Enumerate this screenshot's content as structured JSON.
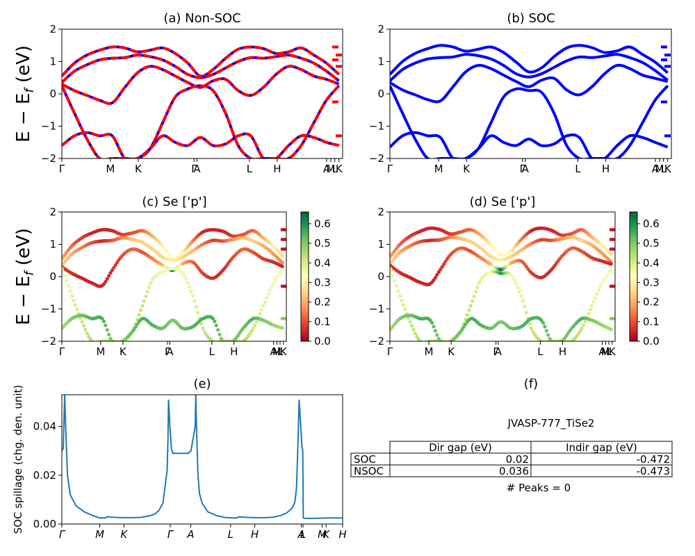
{
  "chart_data": [
    {
      "id": "a",
      "type": "line",
      "title": "(a) Non-SOC",
      "ylabel": "E − E_f (eV)",
      "ylim": [
        -2,
        2
      ],
      "yticks": [
        "2",
        "1",
        "0",
        "−1",
        "−2"
      ],
      "kpoint_labels": [
        "Γ",
        "M",
        "K",
        "Γ",
        "A",
        "L",
        "H",
        "A",
        "M",
        "L",
        "K"
      ],
      "series": [
        {
          "values": [
            0.55,
            0.95,
            1.2,
            1.35,
            1.45,
            1.42,
            1.3,
            1.35,
            1.42,
            1.25,
            0.95,
            0.55,
            0.75,
            1.1,
            1.38,
            1.45,
            1.4,
            1.25,
            1.3,
            1.42,
            1.2,
            0.95,
            0.6
          ]
        },
        {
          "values": [
            0.35,
            0.7,
            0.9,
            1.05,
            1.1,
            1.12,
            1.2,
            1.15,
            1.05,
            0.85,
            0.6,
            0.5,
            0.6,
            0.8,
            1.0,
            1.12,
            1.1,
            1.15,
            1.2,
            1.1,
            0.95,
            0.7,
            0.4
          ]
        },
        {
          "values": [
            0.3,
            0.1,
            -0.05,
            -0.2,
            -0.28,
            0.2,
            0.65,
            0.85,
            0.75,
            0.55,
            0.35,
            0.2,
            0.4,
            0.45,
            0.1,
            -0.05,
            0.2,
            0.6,
            0.85,
            0.75,
            0.55,
            0.45,
            0.3
          ]
        },
        {
          "values": [
            0.25,
            -0.6,
            -1.4,
            -2.0,
            -2.0,
            -2.0,
            -2.0,
            -1.7,
            -0.9,
            -0.1,
            0.15,
            0.25,
            0.1,
            -0.6,
            -1.6,
            -2.0,
            -2.0,
            -2.0,
            -2.0,
            -1.6,
            -0.9,
            -0.2,
            0.25
          ]
        },
        {
          "values": [
            -1.6,
            -1.3,
            -1.2,
            -1.3,
            -1.3,
            -2.0,
            -2.0,
            -1.7,
            -1.3,
            -1.5,
            -1.6,
            -1.35,
            -1.6,
            -1.55,
            -1.3,
            -1.3,
            -2.0,
            -2.0,
            -1.6,
            -1.3,
            -1.35,
            -1.5,
            -1.6
          ]
        }
      ]
    },
    {
      "id": "b",
      "type": "line",
      "title": "(b) SOC",
      "ylim": [
        -2,
        2
      ],
      "yticks": [
        "2",
        "1",
        "0",
        "−1",
        "−2"
      ],
      "kpoint_labels": [
        "Γ",
        "M",
        "K",
        "Γ",
        "A",
        "L",
        "H",
        "A",
        "M",
        "L",
        "K"
      ],
      "series": [
        {
          "values": [
            0.6,
            1.0,
            1.25,
            1.4,
            1.5,
            1.45,
            1.32,
            1.38,
            1.45,
            1.28,
            0.98,
            0.68,
            0.8,
            1.15,
            1.42,
            1.5,
            1.43,
            1.28,
            1.33,
            1.45,
            1.22,
            0.98,
            0.65
          ]
        },
        {
          "values": [
            0.4,
            0.75,
            0.95,
            1.08,
            1.12,
            1.14,
            1.22,
            1.18,
            1.08,
            0.88,
            0.62,
            0.52,
            0.62,
            0.82,
            1.02,
            1.14,
            1.12,
            1.17,
            1.22,
            1.12,
            0.97,
            0.72,
            0.42
          ]
        },
        {
          "values": [
            0.35,
            0.12,
            -0.03,
            -0.18,
            -0.22,
            0.22,
            0.68,
            0.88,
            0.78,
            0.58,
            0.38,
            0.22,
            0.42,
            0.48,
            0.12,
            -0.03,
            0.22,
            0.62,
            0.88,
            0.78,
            0.58,
            0.48,
            0.38
          ]
        },
        {
          "values": [
            0.25,
            -0.6,
            -1.4,
            -2.0,
            -2.0,
            -2.0,
            -2.0,
            -1.7,
            -0.9,
            -0.1,
            0.15,
            0.1,
            0.05,
            -0.6,
            -1.6,
            -2.0,
            -2.0,
            -2.0,
            -2.0,
            -1.6,
            -0.9,
            -0.2,
            0.25
          ]
        },
        {
          "values": [
            -1.65,
            -1.3,
            -1.2,
            -1.3,
            -1.35,
            -2.0,
            -2.0,
            -1.7,
            -1.3,
            -1.5,
            -1.6,
            -1.4,
            -1.6,
            -1.55,
            -1.3,
            -1.35,
            -2.0,
            -2.0,
            -1.6,
            -1.3,
            -1.35,
            -1.5,
            -1.65
          ]
        }
      ]
    },
    {
      "id": "c",
      "type": "scatter",
      "title": "(c)  Se ['p']",
      "ylabel": "E − E_f (eV)",
      "ylim": [
        -2,
        2
      ],
      "yticks": [
        "2",
        "1",
        "0",
        "−1",
        "−2"
      ],
      "kpoint_labels": [
        "Γ",
        "M",
        "K",
        "Γ",
        "A",
        "L",
        "H",
        "A",
        "M",
        "L",
        "K"
      ],
      "colorbar": {
        "min": 0.0,
        "max": 0.66,
        "ticks": [
          "0.0",
          "0.1",
          "0.2",
          "0.3",
          "0.4",
          "0.5",
          "0.6"
        ],
        "colors": [
          "#a50026",
          "#d73027",
          "#f46d43",
          "#fdae61",
          "#fee08b",
          "#ffffbf",
          "#d9ef8b",
          "#a6d96a",
          "#66bd63",
          "#1a9850",
          "#006837"
        ]
      },
      "series": [
        {
          "values": [
            0.55,
            0.95,
            1.2,
            1.35,
            1.45,
            1.42,
            1.3,
            1.35,
            1.42,
            1.25,
            0.95,
            0.55,
            0.75,
            1.1,
            1.38,
            1.45,
            1.4,
            1.25,
            1.3,
            1.42,
            1.2,
            0.95,
            0.6
          ],
          "weights": [
            0.2,
            0.12,
            0.08,
            0.05,
            0.05,
            0.05,
            0.08,
            0.1,
            0.12,
            0.2,
            0.3,
            0.35,
            0.3,
            0.15,
            0.05,
            0.05,
            0.05,
            0.08,
            0.1,
            0.12,
            0.2,
            0.3,
            0.25
          ]
        },
        {
          "values": [
            0.35,
            0.7,
            0.9,
            1.05,
            1.1,
            1.12,
            1.2,
            1.15,
            1.05,
            0.85,
            0.6,
            0.5,
            0.6,
            0.8,
            1.0,
            1.12,
            1.1,
            1.15,
            1.2,
            1.1,
            0.95,
            0.7,
            0.4
          ],
          "weights": [
            0.25,
            0.2,
            0.15,
            0.1,
            0.05,
            0.1,
            0.15,
            0.22,
            0.25,
            0.25,
            0.25,
            0.3,
            0.25,
            0.22,
            0.15,
            0.08,
            0.1,
            0.18,
            0.22,
            0.25,
            0.2,
            0.18,
            0.15
          ]
        },
        {
          "values": [
            0.3,
            0.1,
            -0.05,
            -0.2,
            -0.28,
            0.2,
            0.65,
            0.85,
            0.75,
            0.55,
            0.35,
            0.2,
            0.4,
            0.45,
            0.1,
            -0.05,
            0.2,
            0.6,
            0.85,
            0.75,
            0.55,
            0.45,
            0.3
          ],
          "weights": [
            0.08,
            0.06,
            0.05,
            0.05,
            0.05,
            0.06,
            0.1,
            0.12,
            0.1,
            0.15,
            0.2,
            0.66,
            0.2,
            0.12,
            0.08,
            0.06,
            0.06,
            0.1,
            0.12,
            0.1,
            0.08,
            0.06,
            0.05
          ]
        },
        {
          "values": [
            0.25,
            -0.6,
            -1.4,
            -2.0,
            -2.0,
            -2.0,
            -2.0,
            -1.7,
            -0.9,
            -0.1,
            0.15,
            0.25,
            0.1,
            -0.6,
            -1.6,
            -2.0,
            -2.0,
            -2.0,
            -2.0,
            -1.6,
            -0.9,
            -0.2,
            0.25
          ],
          "weights": [
            0.35,
            0.38,
            0.42,
            0.45,
            0.45,
            0.45,
            0.45,
            0.45,
            0.42,
            0.38,
            0.35,
            0.35,
            0.35,
            0.38,
            0.42,
            0.45,
            0.45,
            0.45,
            0.45,
            0.42,
            0.38,
            0.35,
            0.35
          ]
        },
        {
          "values": [
            -1.6,
            -1.3,
            -1.2,
            -1.3,
            -1.3,
            -2.0,
            -2.0,
            -1.7,
            -1.3,
            -1.5,
            -1.6,
            -1.35,
            -1.6,
            -1.55,
            -1.3,
            -1.3,
            -2.0,
            -2.0,
            -1.6,
            -1.3,
            -1.35,
            -1.5,
            -1.6
          ],
          "weights": [
            0.45,
            0.5,
            0.52,
            0.55,
            0.55,
            0.5,
            0.5,
            0.52,
            0.55,
            0.55,
            0.52,
            0.5,
            0.52,
            0.55,
            0.55,
            0.55,
            0.5,
            0.5,
            0.52,
            0.55,
            0.5,
            0.48,
            0.45
          ]
        }
      ]
    },
    {
      "id": "d",
      "type": "scatter",
      "title": "(d) Se ['p']",
      "ylim": [
        -2,
        2
      ],
      "yticks": [
        "2",
        "1",
        "0",
        "−1",
        "−2"
      ],
      "kpoint_labels": [
        "Γ",
        "M",
        "K",
        "Γ",
        "A",
        "L",
        "H",
        "A",
        "M",
        "L",
        "K"
      ],
      "colorbar": {
        "min": 0.0,
        "max": 0.66,
        "ticks": [
          "0.0",
          "0.1",
          "0.2",
          "0.3",
          "0.4",
          "0.5",
          "0.6"
        ],
        "colors": [
          "#a50026",
          "#d73027",
          "#f46d43",
          "#fdae61",
          "#fee08b",
          "#ffffbf",
          "#d9ef8b",
          "#a6d96a",
          "#66bd63",
          "#1a9850",
          "#006837"
        ]
      },
      "series": [
        {
          "values": [
            0.6,
            1.0,
            1.25,
            1.4,
            1.5,
            1.45,
            1.32,
            1.38,
            1.45,
            1.28,
            0.98,
            0.68,
            0.8,
            1.15,
            1.42,
            1.5,
            1.43,
            1.28,
            1.33,
            1.45,
            1.22,
            0.98,
            0.65
          ],
          "weights": [
            0.2,
            0.12,
            0.08,
            0.05,
            0.05,
            0.05,
            0.08,
            0.1,
            0.12,
            0.2,
            0.3,
            0.35,
            0.3,
            0.15,
            0.05,
            0.05,
            0.05,
            0.08,
            0.1,
            0.12,
            0.2,
            0.3,
            0.25
          ]
        },
        {
          "values": [
            0.4,
            0.75,
            0.95,
            1.08,
            1.12,
            1.14,
            1.22,
            1.18,
            1.08,
            0.88,
            0.62,
            0.52,
            0.62,
            0.82,
            1.02,
            1.14,
            1.12,
            1.17,
            1.22,
            1.12,
            0.97,
            0.72,
            0.42
          ],
          "weights": [
            0.25,
            0.2,
            0.15,
            0.1,
            0.05,
            0.1,
            0.15,
            0.22,
            0.25,
            0.25,
            0.25,
            0.3,
            0.25,
            0.22,
            0.15,
            0.08,
            0.1,
            0.18,
            0.22,
            0.25,
            0.2,
            0.18,
            0.15
          ]
        },
        {
          "values": [
            0.35,
            0.12,
            -0.03,
            -0.18,
            -0.22,
            0.22,
            0.68,
            0.88,
            0.78,
            0.58,
            0.38,
            0.22,
            0.42,
            0.48,
            0.12,
            -0.03,
            0.22,
            0.62,
            0.88,
            0.78,
            0.58,
            0.48,
            0.38
          ],
          "weights": [
            0.08,
            0.06,
            0.05,
            0.05,
            0.05,
            0.06,
            0.1,
            0.12,
            0.1,
            0.15,
            0.2,
            0.66,
            0.2,
            0.12,
            0.08,
            0.06,
            0.06,
            0.1,
            0.12,
            0.1,
            0.08,
            0.06,
            0.05
          ]
        },
        {
          "values": [
            0.25,
            -0.6,
            -1.4,
            -2.0,
            -2.0,
            -2.0,
            -2.0,
            -1.7,
            -0.9,
            -0.1,
            0.15,
            0.1,
            0.05,
            -0.6,
            -1.6,
            -2.0,
            -2.0,
            -2.0,
            -2.0,
            -1.6,
            -0.9,
            -0.2,
            0.25
          ],
          "weights": [
            0.35,
            0.38,
            0.42,
            0.45,
            0.45,
            0.45,
            0.45,
            0.45,
            0.42,
            0.38,
            0.35,
            0.6,
            0.35,
            0.38,
            0.42,
            0.45,
            0.45,
            0.45,
            0.45,
            0.42,
            0.38,
            0.35,
            0.35
          ]
        },
        {
          "values": [
            -1.65,
            -1.3,
            -1.2,
            -1.3,
            -1.35,
            -2.0,
            -2.0,
            -1.7,
            -1.3,
            -1.5,
            -1.6,
            -1.4,
            -1.6,
            -1.55,
            -1.3,
            -1.35,
            -2.0,
            -2.0,
            -1.6,
            -1.3,
            -1.35,
            -1.5,
            -1.65
          ],
          "weights": [
            0.45,
            0.5,
            0.52,
            0.55,
            0.55,
            0.5,
            0.5,
            0.52,
            0.55,
            0.55,
            0.52,
            0.5,
            0.52,
            0.55,
            0.55,
            0.55,
            0.5,
            0.5,
            0.52,
            0.55,
            0.5,
            0.48,
            0.45
          ]
        }
      ]
    },
    {
      "id": "e",
      "type": "line",
      "title": "(e)",
      "ylabel": "SOC spillage (chg. den. unit)",
      "ylim": [
        0,
        0.053
      ],
      "yticks": [
        "0.04",
        "0.02",
        "0.00"
      ],
      "kpoint_labels": [
        "Γ",
        "M",
        "K",
        "Γ",
        "A",
        "L",
        "H",
        "A",
        "L",
        "M",
        "K",
        "H"
      ],
      "color": "#1f77b4",
      "series": [
        {
          "x": [
            0.0,
            0.005,
            0.01,
            0.015,
            0.02,
            0.03,
            0.05,
            0.08,
            0.11,
            0.135,
            0.155,
            0.16,
            0.19,
            0.22,
            0.25,
            0.28,
            0.31,
            0.33,
            0.345,
            0.36,
            0.375,
            0.378,
            0.38,
            0.385,
            0.39,
            0.395,
            0.41,
            0.42,
            0.435,
            0.45,
            0.46,
            0.475,
            0.477,
            0.48,
            0.485,
            0.49,
            0.5,
            0.52,
            0.55,
            0.58,
            0.61,
            0.625,
            0.63,
            0.66,
            0.69,
            0.72,
            0.75,
            0.78,
            0.8,
            0.82,
            0.83,
            0.836,
            0.84,
            0.845,
            0.855,
            0.858,
            0.86,
            0.865,
            0.9,
            0.95,
            0.99,
            1.0
          ],
          "values": [
            0.03,
            0.031,
            0.053,
            0.035,
            0.02,
            0.012,
            0.0075,
            0.005,
            0.0035,
            0.0025,
            0.0025,
            0.003,
            0.0027,
            0.0026,
            0.0026,
            0.0027,
            0.0033,
            0.004,
            0.0055,
            0.0085,
            0.022,
            0.035,
            0.051,
            0.04,
            0.031,
            0.029,
            0.029,
            0.029,
            0.029,
            0.029,
            0.03,
            0.04,
            0.053,
            0.038,
            0.02,
            0.0125,
            0.0085,
            0.005,
            0.0035,
            0.0027,
            0.0025,
            0.0025,
            0.003,
            0.0027,
            0.0026,
            0.0026,
            0.0028,
            0.0035,
            0.0045,
            0.0065,
            0.009,
            0.015,
            0.03,
            0.051,
            0.032,
            0.03,
            0.0025,
            0.0023,
            0.0023,
            0.0025,
            0.0025,
            0.0025
          ]
        }
      ]
    }
  ],
  "panel_f": {
    "title": "(f)",
    "material": "JVASP-777_TiSe2",
    "headers": [
      "",
      "Dir gap (eV)",
      "Indir gap (eV)"
    ],
    "rows": [
      [
        "SOC",
        "0.02",
        "-0.472"
      ],
      [
        "NSOC",
        "0.036",
        "-0.473"
      ]
    ],
    "peaks": "# Peaks = 0"
  }
}
